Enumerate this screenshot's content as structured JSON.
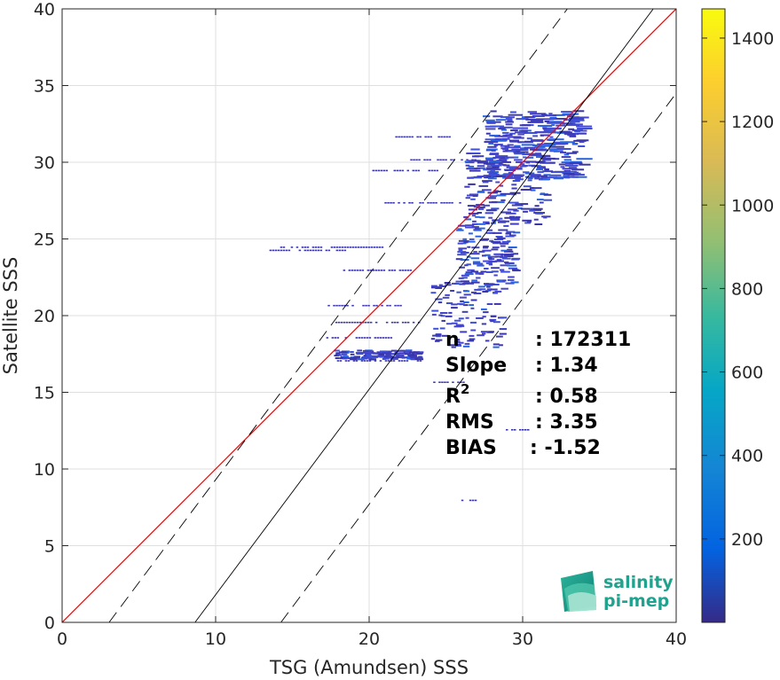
{
  "chart_data": {
    "type": "heatmap",
    "xlabel": "TSG (Amundsen) SSS",
    "ylabel": "Satellite SSS",
    "xlim": [
      0,
      40
    ],
    "ylim": [
      0,
      40
    ],
    "xticks": [
      "0",
      "10",
      "20",
      "30",
      "40"
    ],
    "yticks": [
      "0",
      "5",
      "10",
      "15",
      "20",
      "25",
      "30",
      "35",
      "40"
    ],
    "grid": true,
    "colormap": "parula",
    "colorbar": {
      "range": [
        0,
        1470
      ],
      "ticks": [
        "200",
        "400",
        "600",
        "800",
        "1000",
        "1200",
        "1400"
      ]
    },
    "lines": [
      {
        "kind": "identity",
        "color": "#ff0000",
        "x": [
          0,
          40
        ],
        "y": [
          0,
          40
        ]
      },
      {
        "kind": "regression",
        "color": "#000000",
        "slope": 1.34,
        "intercept": -11.6
      },
      {
        "kind": "regression-plus",
        "color": "#000000",
        "dash": true,
        "slope": 1.34,
        "intercept": -4.1
      },
      {
        "kind": "regression-minus",
        "color": "#000000",
        "dash": true,
        "slope": 1.34,
        "intercept": -19.1
      }
    ],
    "density_bands": [
      {
        "x": [
          27.4,
          33.7
        ],
        "y": [
          29.0,
          33.4
        ],
        "weight": 0.9
      },
      {
        "x": [
          26.2,
          31.5
        ],
        "y": [
          26.0,
          31.0
        ],
        "weight": 0.55
      },
      {
        "x": [
          25.6,
          29.4
        ],
        "y": [
          22.0,
          26.5
        ],
        "weight": 0.45
      },
      {
        "x": [
          24.0,
          28.6
        ],
        "y": [
          18.0,
          22.2
        ],
        "weight": 0.3
      },
      {
        "x": [
          17.6,
          23.2
        ],
        "y": [
          17.2,
          17.8
        ],
        "weight": 0.35
      }
    ],
    "streaks": [
      {
        "x": [
          21.7,
          25.5
        ],
        "y": 31.7
      },
      {
        "x": [
          22.5,
          27.0
        ],
        "y": 30.2
      },
      {
        "x": [
          20.2,
          24.5
        ],
        "y": 29.5
      },
      {
        "x": [
          21.0,
          26.0
        ],
        "y": 27.4
      },
      {
        "x": [
          14.2,
          20.8
        ],
        "y": 24.5
      },
      {
        "x": [
          13.5,
          18.5
        ],
        "y": 24.3
      },
      {
        "x": [
          18.3,
          22.8
        ],
        "y": 23.0
      },
      {
        "x": [
          17.3,
          22.0
        ],
        "y": 20.7
      },
      {
        "x": [
          17.8,
          23.5
        ],
        "y": 19.6
      },
      {
        "x": [
          17.2,
          21.5
        ],
        "y": 18.6
      },
      {
        "x": [
          17.9,
          23.8
        ],
        "y": 17.1
      },
      {
        "x": [
          24.0,
          26.2
        ],
        "y": 15.7
      },
      {
        "x": [
          28.9,
          30.3
        ],
        "y": 12.6
      },
      {
        "x": [
          26.0,
          27.0
        ],
        "y": 8.0
      }
    ],
    "stats": [
      {
        "label": "n",
        "value": ": 172311"
      },
      {
        "label": "Slope",
        "value": ": 1.34"
      },
      {
        "label": "R",
        "sup": "2",
        "value": ": 0.58"
      },
      {
        "label": "RMS",
        "value": ": 3.35"
      },
      {
        "label": "BIAS",
        "value": ": -1.52"
      }
    ]
  },
  "logo": {
    "line1": "salinity",
    "line2": "pi-mep"
  }
}
